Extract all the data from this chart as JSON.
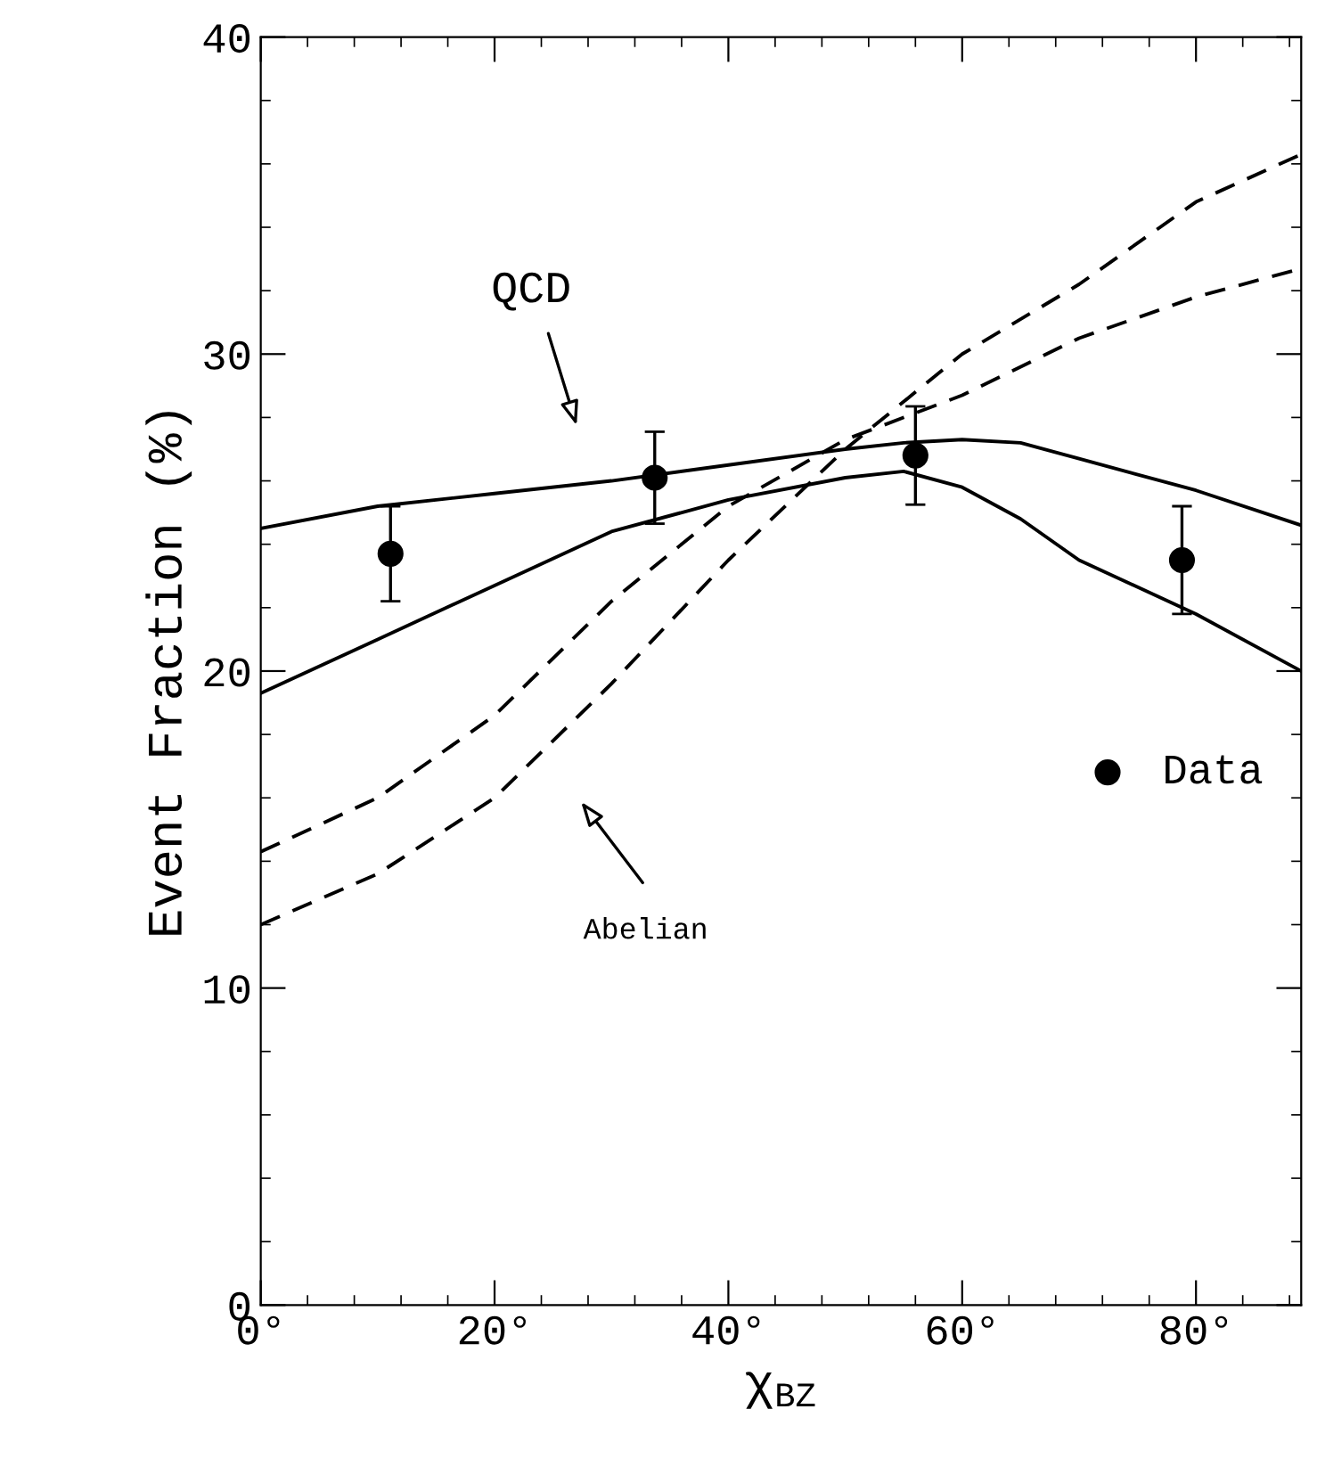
{
  "chart_data": {
    "type": "line",
    "xlabel": "χ$_{BZ}$",
    "ylabel": "Event Fraction (%)",
    "xlim": [
      0,
      89
    ],
    "ylim": [
      0,
      40
    ],
    "xticks": [
      {
        "value": 0,
        "label": "0°"
      },
      {
        "value": 20,
        "label": "20°"
      },
      {
        "value": 40,
        "label": "40°"
      },
      {
        "value": 60,
        "label": "60°"
      },
      {
        "value": 80,
        "label": "80°"
      }
    ],
    "yticks": [
      0,
      10,
      20,
      30,
      40
    ],
    "grid": false,
    "legend": "right",
    "series": [
      {
        "color": "#000000",
        "line_style": "solid",
        "marker": "none",
        "x": [
          0,
          10,
          20,
          30,
          40,
          50,
          55,
          60,
          65,
          70,
          80,
          89
        ],
        "values": [
          24.5,
          25.2,
          25.6,
          26.0,
          26.5,
          27.0,
          27.2,
          27.3,
          27.2,
          26.7,
          25.7,
          24.6
        ]
      },
      {
        "color": "#000000",
        "line_style": "solid",
        "marker": "none",
        "x": [
          0,
          10,
          20,
          30,
          40,
          50,
          55,
          60,
          65,
          70,
          80,
          89
        ],
        "values": [
          19.3,
          21.0,
          22.7,
          24.4,
          25.4,
          26.1,
          26.3,
          25.8,
          24.8,
          23.5,
          21.8,
          20.0
        ]
      },
      {
        "color": "#000000",
        "line_style": "dashed",
        "marker": "none",
        "x": [
          0,
          10,
          20,
          30,
          40,
          50,
          60,
          70,
          80,
          89
        ],
        "values": [
          14.3,
          16.0,
          18.6,
          22.2,
          25.2,
          27.3,
          28.7,
          30.5,
          31.8,
          32.7
        ]
      },
      {
        "color": "#000000",
        "line_style": "dashed",
        "marker": "none",
        "x": [
          0,
          10,
          20,
          30,
          40,
          50,
          60,
          70,
          80,
          89
        ],
        "values": [
          12.0,
          13.6,
          16.0,
          19.6,
          23.5,
          27.0,
          30.0,
          32.2,
          34.8,
          36.3
        ]
      },
      {
        "type": "scatter",
        "name": "Data",
        "color": "#000000",
        "marker": "circle",
        "x": [
          11.1,
          33.7,
          56.0,
          78.8
        ],
        "values": [
          23.7,
          26.1,
          26.8,
          23.5
        ],
        "errors": [
          1.5,
          1.45,
          1.55,
          1.7
        ]
      }
    ],
    "annotations": [
      "QCD",
      "Abelian"
    ]
  }
}
